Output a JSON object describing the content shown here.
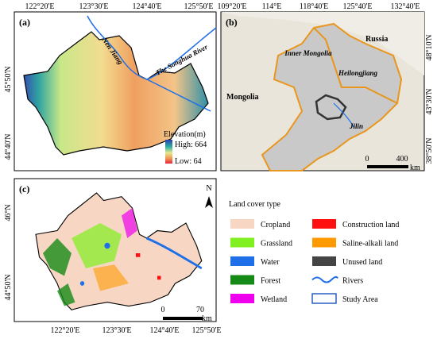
{
  "panels": {
    "a": {
      "label": "(a)",
      "top_ticks": [
        "122°20'E",
        "123°30'E",
        "124°40'E",
        "125°50'E"
      ],
      "left_ticks": [
        "45°50'N",
        "44°40'N"
      ],
      "rivers": [
        "Nen Jiang",
        "The Songhua River"
      ],
      "legend": {
        "title": "Elevation(m)",
        "high": "High: 664",
        "low": "Low: 64"
      }
    },
    "b": {
      "label": "(b)",
      "top_ticks": [
        "109°20'E",
        "114°E",
        "118°40'E",
        "125°40'E",
        "132°40'E"
      ],
      "right_ticks": [
        "48°10'N",
        "43°30'N",
        "38°50'N"
      ],
      "countries": [
        "Russia",
        "Mongolia"
      ],
      "provinces": [
        "Inner Mongolia",
        "Heilongjiang",
        "Jilin"
      ],
      "scale": [
        "0",
        "400",
        "km"
      ]
    },
    "c": {
      "label": "(c)",
      "bottom_ticks": [
        "122°20'E",
        "123°30'E",
        "124°40'E",
        "125°50'E"
      ],
      "left_ticks": [
        "46°N",
        "44°50'N"
      ],
      "north": "N",
      "scale": [
        "0",
        "70",
        "km"
      ]
    }
  },
  "legend": {
    "title": "Land cover type",
    "items": [
      {
        "label": "Cropland",
        "color": "#f7d7c4",
        "symbol": "fill"
      },
      {
        "label": "Construction land",
        "color": "#ff1010",
        "symbol": "fill"
      },
      {
        "label": "Grassland",
        "color": "#80f020",
        "symbol": "fill"
      },
      {
        "label": "Saline-alkali land",
        "color": "#ff9900",
        "symbol": "fill"
      },
      {
        "label": "Water",
        "color": "#1e6fe8",
        "symbol": "fill"
      },
      {
        "label": "Unused land",
        "color": "#444444",
        "symbol": "fill"
      },
      {
        "label": "Forest",
        "color": "#168a16",
        "symbol": "fill"
      },
      {
        "label": "Rivers",
        "color": "#1e6fe8",
        "symbol": "line"
      },
      {
        "label": "Wetland",
        "color": "#ee00ee",
        "symbol": "fill"
      },
      {
        "label": "Study Area",
        "color": "#2a60c0",
        "symbol": "outline"
      }
    ]
  }
}
